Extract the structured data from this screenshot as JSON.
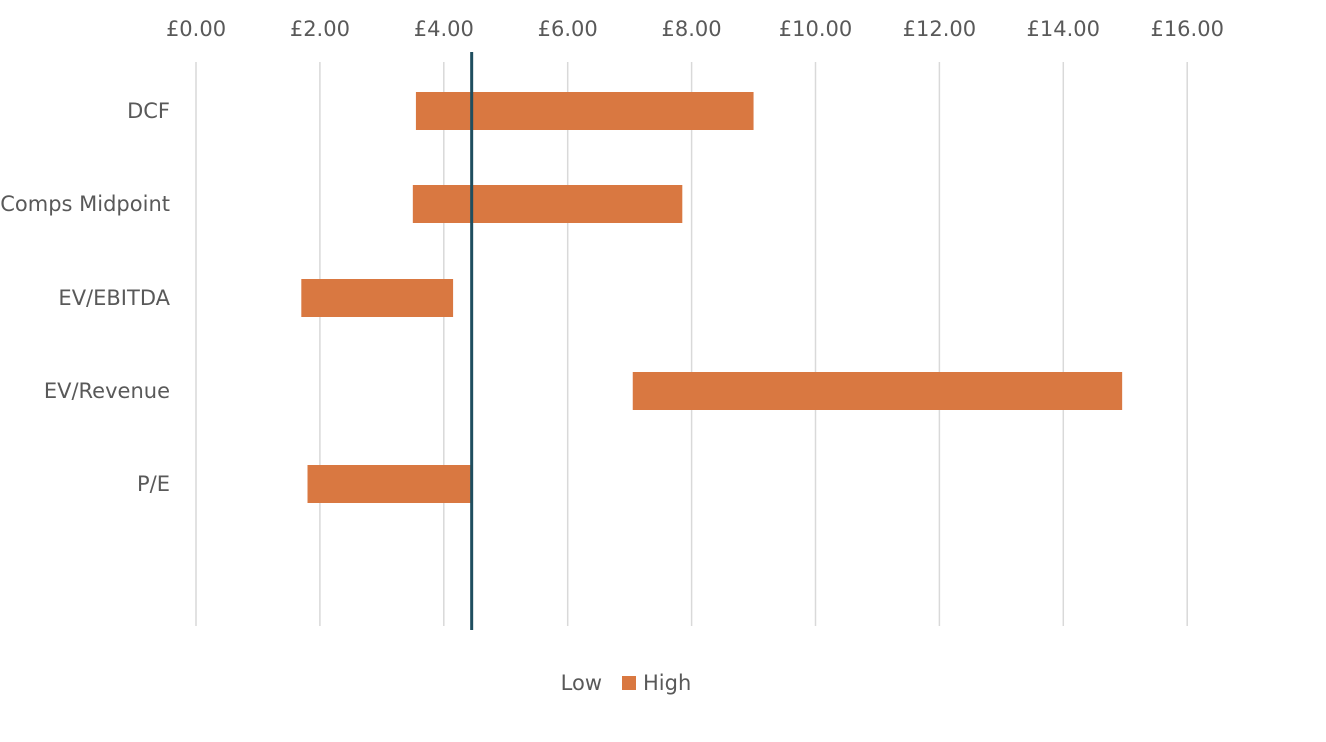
{
  "chart_data": {
    "type": "bar",
    "orientation": "horizontal",
    "stacked": true,
    "categories": [
      "DCF",
      "Comps Midpoint",
      "EV/EBITDA",
      "EV/Revenue",
      "P/E"
    ],
    "series": [
      {
        "name": "Low",
        "values": [
          3.55,
          3.5,
          1.7,
          7.05,
          1.8
        ],
        "color": "none"
      },
      {
        "name": "High",
        "values": [
          5.45,
          4.35,
          2.45,
          7.9,
          2.65
        ],
        "color": "#D97841"
      }
    ],
    "x_ticks": [
      "£0.00",
      "£2.00",
      "£4.00",
      "£6.00",
      "£8.00",
      "£10.00",
      "£12.00",
      "£14.00",
      "£16.00"
    ],
    "xlim": [
      0,
      16
    ],
    "x_axis_position": "top",
    "reference_line": {
      "value": 4.45,
      "color": "#1F4E5F"
    },
    "grid": true,
    "gridline_color": "#D9D9D9",
    "legend": {
      "position": "bottom",
      "entries": [
        "Low",
        "High"
      ]
    }
  }
}
